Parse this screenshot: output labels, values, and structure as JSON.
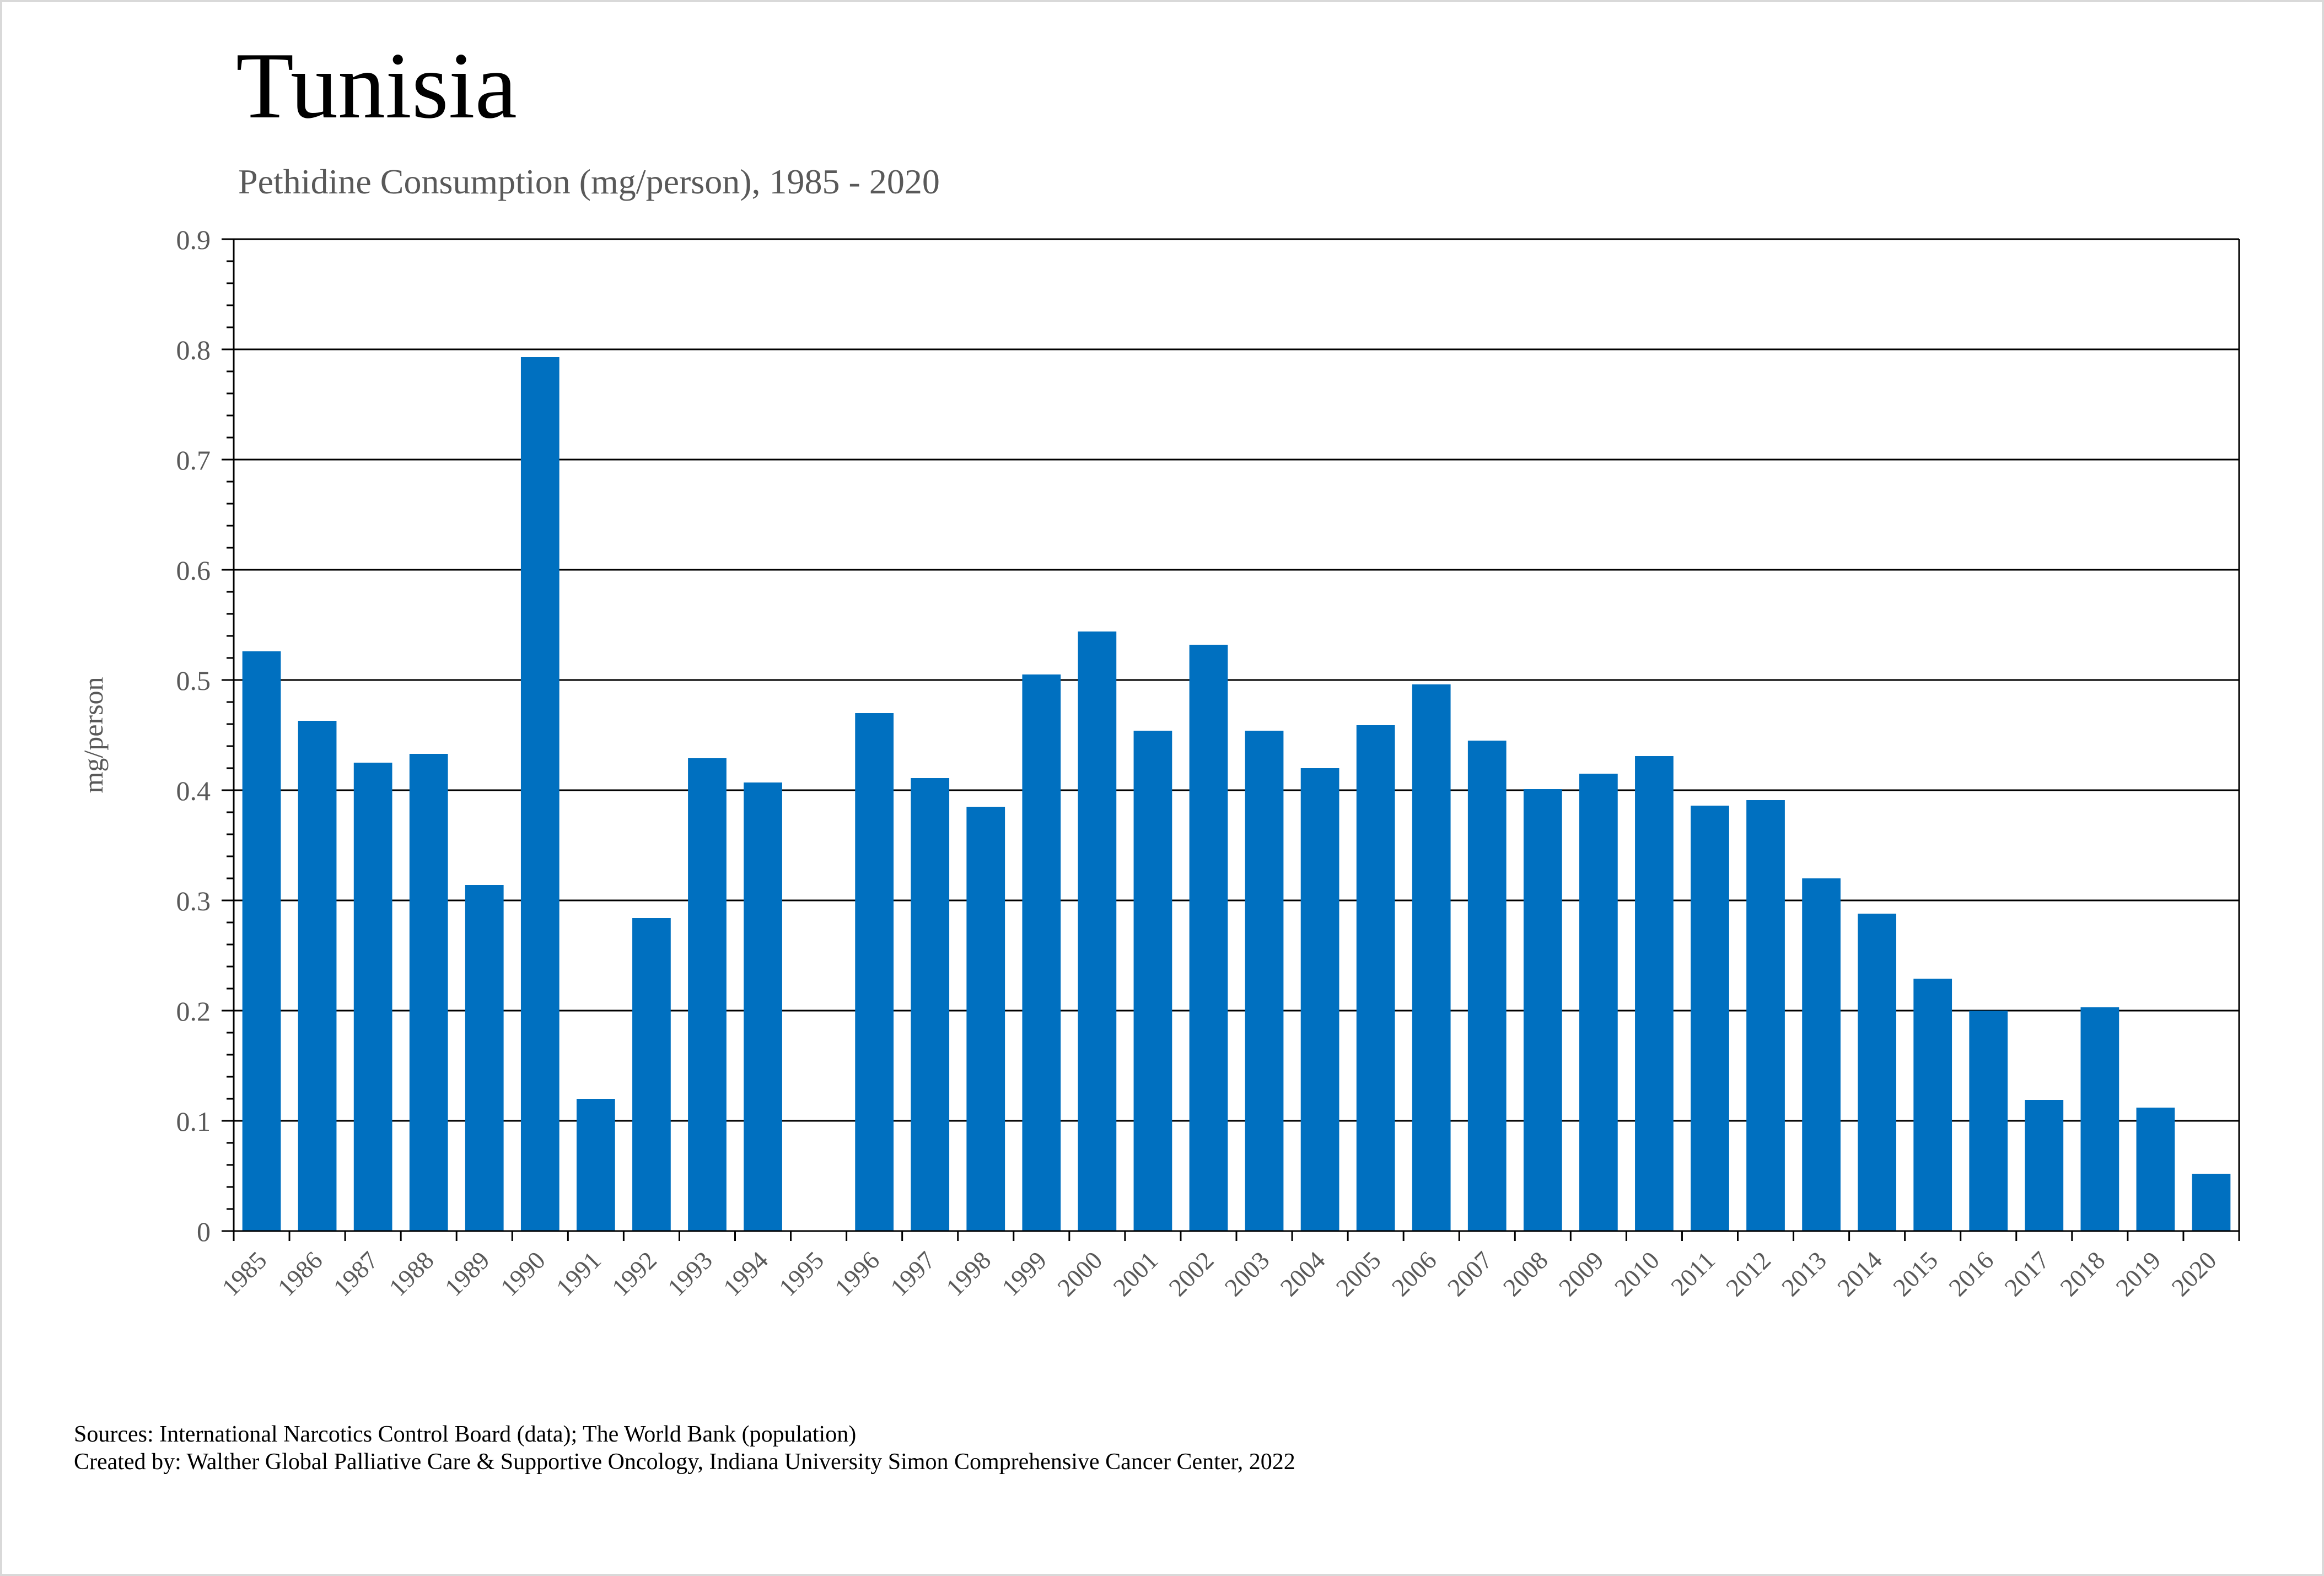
{
  "chart_data": {
    "type": "bar",
    "title": "Tunisia",
    "subtitle": "Pethidine Consumption (mg/person), 1985 - 2020",
    "xlabel": "",
    "ylabel": "mg/person",
    "ylim": [
      0,
      0.9
    ],
    "yticks": [
      "0",
      "0.1",
      "0.2",
      "0.3",
      "0.4",
      "0.5",
      "0.6",
      "0.7",
      "0.8",
      "0.9"
    ],
    "grid": true,
    "legend": "none",
    "bar_color": "#0070C0",
    "categories": [
      "1985",
      "1986",
      "1987",
      "1988",
      "1989",
      "1990",
      "1991",
      "1992",
      "1993",
      "1994",
      "1995",
      "1996",
      "1997",
      "1998",
      "1999",
      "2000",
      "2001",
      "2002",
      "2003",
      "2004",
      "2005",
      "2006",
      "2007",
      "2008",
      "2009",
      "2010",
      "2011",
      "2012",
      "2013",
      "2014",
      "2015",
      "2016",
      "2017",
      "2018",
      "2019",
      "2020"
    ],
    "values": [
      0.526,
      0.463,
      0.425,
      0.433,
      0.314,
      0.793,
      0.12,
      0.284,
      0.429,
      0.407,
      0,
      0.47,
      0.411,
      0.385,
      0.505,
      0.544,
      0.454,
      0.532,
      0.454,
      0.42,
      0.459,
      0.496,
      0.445,
      0.401,
      0.415,
      0.431,
      0.386,
      0.391,
      0.32,
      0.288,
      0.229,
      0.2,
      0.119,
      0.203,
      0.112,
      0.052
    ]
  },
  "footer": {
    "sources": "Sources: International Narcotics Control Board (data); The World Bank (population)",
    "created_by": "Created by: Walther Global Palliative Care & Supportive Oncology, Indiana University Simon Comprehensive Cancer Center, 2022"
  },
  "colors": {
    "bar": "#0070C0",
    "gridline": "#000000",
    "axis_text": "#595959",
    "title": "#000000"
  }
}
